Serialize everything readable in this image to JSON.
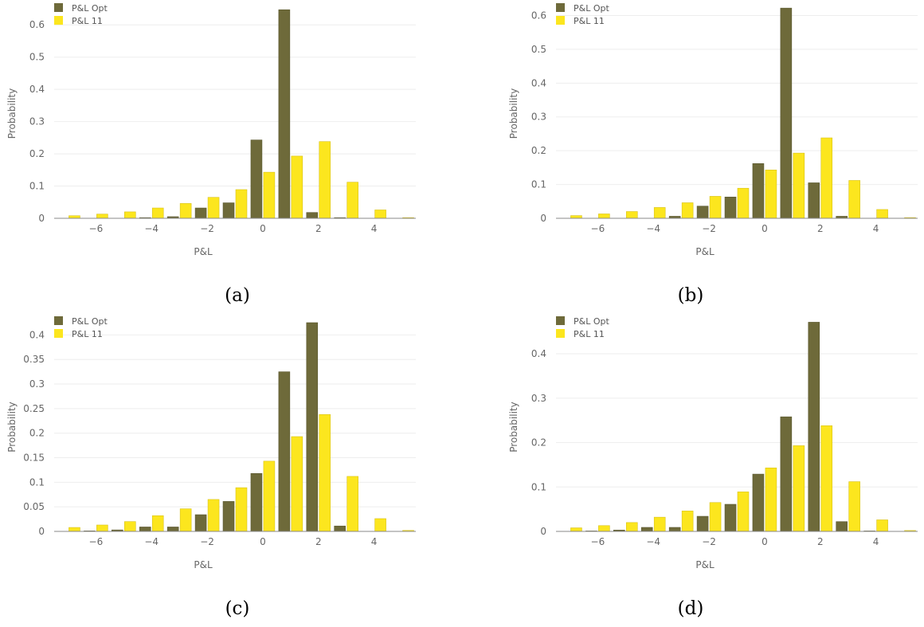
{
  "captions": [
    "(a)",
    "(b)",
    "(c)",
    "(d)"
  ],
  "colors": {
    "opt": "#6e6a3a",
    "p11": "#fce61e",
    "grid": "#eeeeee",
    "axis": "#888888"
  },
  "chart_data": [
    {
      "type": "bar",
      "xlabel": "P&L",
      "ylabel": "Probability",
      "x": [
        -7,
        -6,
        -5,
        -4,
        -3,
        -2,
        -1,
        0,
        1,
        2,
        3,
        4,
        5
      ],
      "xlim": [
        -7.5,
        5.5
      ],
      "xticks": [
        -6,
        -4,
        -2,
        0,
        2,
        4
      ],
      "ylim": [
        0,
        0.65
      ],
      "yticks": [
        0,
        0.1,
        0.2,
        0.3,
        0.4,
        0.5,
        0.6
      ],
      "ytick_labels": [
        "0",
        "0.1",
        "0.2",
        "0.3",
        "0.4",
        "0.5",
        "0.6"
      ],
      "legend": "top-left",
      "series": [
        {
          "name": "P&L Opt",
          "values": [
            0,
            0,
            0,
            0.002,
            0.005,
            0.032,
            0.048,
            0.243,
            0.647,
            0.018,
            0.002,
            0,
            0
          ]
        },
        {
          "name": "P&L 11",
          "values": [
            0.008,
            0.013,
            0.02,
            0.032,
            0.046,
            0.065,
            0.089,
            0.143,
            0.193,
            0.238,
            0.112,
            0.026,
            0.002
          ]
        }
      ]
    },
    {
      "type": "bar",
      "xlabel": "P&L",
      "ylabel": "Probability",
      "x": [
        -7,
        -6,
        -5,
        -4,
        -3,
        -2,
        -1,
        0,
        1,
        2,
        3,
        4,
        5
      ],
      "xlim": [
        -7.5,
        5.5
      ],
      "xticks": [
        -6,
        -4,
        -2,
        0,
        2,
        4
      ],
      "ylim": [
        0,
        0.62
      ],
      "yticks": [
        0,
        0.1,
        0.2,
        0.3,
        0.4,
        0.5,
        0.6
      ],
      "ytick_labels": [
        "0",
        "0.1",
        "0.2",
        "0.3",
        "0.4",
        "0.5",
        "0.6"
      ],
      "legend": "top-left",
      "series": [
        {
          "name": "P&L Opt",
          "values": [
            0,
            0,
            0,
            0,
            0.006,
            0.036,
            0.063,
            0.162,
            0.622,
            0.105,
            0.006,
            0,
            0
          ]
        },
        {
          "name": "P&L 11",
          "values": [
            0.008,
            0.013,
            0.02,
            0.032,
            0.046,
            0.065,
            0.089,
            0.143,
            0.193,
            0.238,
            0.112,
            0.026,
            0.002
          ]
        }
      ]
    },
    {
      "type": "bar",
      "xlabel": "P&L",
      "ylabel": "Probability",
      "x": [
        -7,
        -6,
        -5,
        -4,
        -3,
        -2,
        -1,
        0,
        1,
        2,
        3,
        4,
        5
      ],
      "xlim": [
        -7.5,
        5.5
      ],
      "xticks": [
        -6,
        -4,
        -2,
        0,
        2,
        4
      ],
      "ylim": [
        0,
        0.425
      ],
      "yticks": [
        0,
        0.05,
        0.1,
        0.15,
        0.2,
        0.25,
        0.3,
        0.35,
        0.4
      ],
      "ytick_labels": [
        "0",
        "0.05",
        "0.1",
        "0.15",
        "0.2",
        "0.25",
        "0.3",
        "0.35",
        "0.4"
      ],
      "legend": "top-left",
      "series": [
        {
          "name": "P&L Opt",
          "values": [
            0,
            0.001,
            0.003,
            0.009,
            0.009,
            0.034,
            0.061,
            0.118,
            0.325,
            0.425,
            0.011,
            0,
            0
          ]
        },
        {
          "name": "P&L 11",
          "values": [
            0.008,
            0.013,
            0.02,
            0.032,
            0.046,
            0.065,
            0.089,
            0.143,
            0.193,
            0.238,
            0.112,
            0.026,
            0.002
          ]
        }
      ]
    },
    {
      "type": "bar",
      "xlabel": "P&L",
      "ylabel": "Probability",
      "x": [
        -7,
        -6,
        -5,
        -4,
        -3,
        -2,
        -1,
        0,
        1,
        2,
        3,
        4,
        5
      ],
      "xlim": [
        -7.5,
        5.5
      ],
      "xticks": [
        -6,
        -4,
        -2,
        0,
        2,
        4
      ],
      "ylim": [
        0,
        0.47
      ],
      "yticks": [
        0,
        0.1,
        0.2,
        0.3,
        0.4
      ],
      "ytick_labels": [
        "0",
        "0.1",
        "0.2",
        "0.3",
        "0.4"
      ],
      "legend": "top-left",
      "series": [
        {
          "name": "P&L Opt",
          "values": [
            0,
            0.001,
            0.003,
            0.009,
            0.009,
            0.034,
            0.061,
            0.129,
            0.258,
            0.471,
            0.022,
            0.001,
            0
          ]
        },
        {
          "name": "P&L 11",
          "values": [
            0.008,
            0.013,
            0.02,
            0.032,
            0.046,
            0.065,
            0.089,
            0.143,
            0.193,
            0.238,
            0.112,
            0.026,
            0.002
          ]
        }
      ]
    }
  ]
}
